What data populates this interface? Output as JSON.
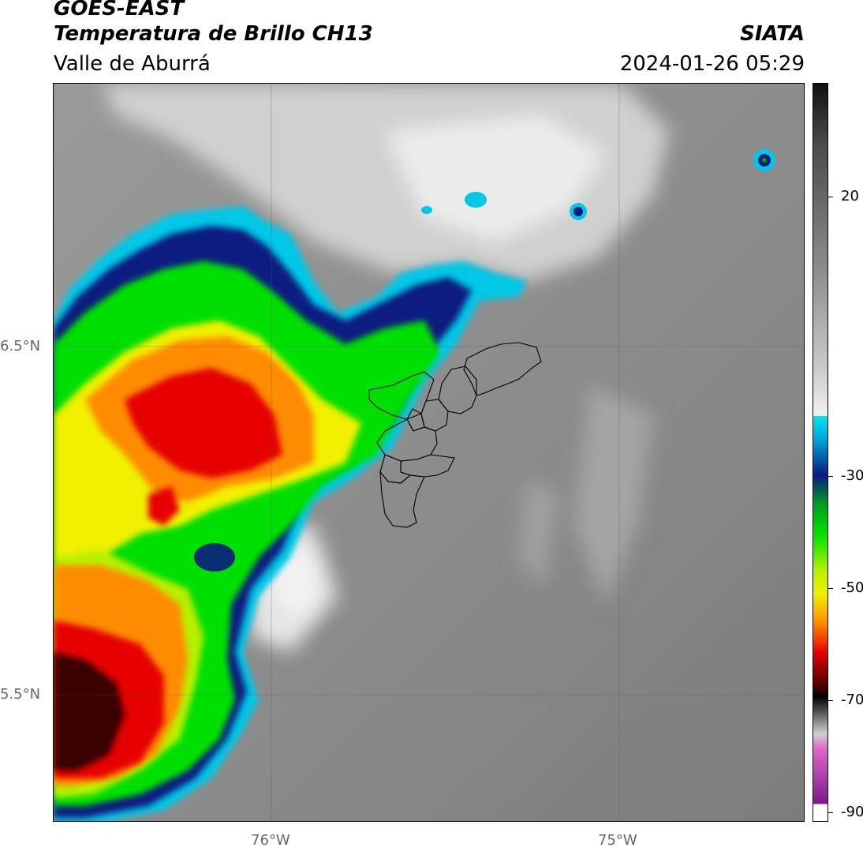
{
  "header": {
    "satellite": "GOES-EAST",
    "product": "Temperatura de Brillo CH13",
    "region": "Valle de Aburrá",
    "brand": "SIATA",
    "timestamp": "2024-01-26 05:29"
  },
  "map": {
    "lat_labels": [
      "6.5°N",
      "5.5°N"
    ],
    "lon_labels": [
      "76°W",
      "75°W"
    ]
  },
  "colorbar": {
    "ticks": [
      "20",
      "-30",
      "-50",
      "-70",
      "-90"
    ],
    "colors": {
      "warm": "#8c8c8c",
      "cold_white": "#f2f2f2",
      "cyan": "#00c8e6",
      "navy": "#0a1a80",
      "green": "#00e000",
      "yellow": "#f0f000",
      "orange": "#ff8c00",
      "red": "#e60000",
      "darkred": "#3a0000",
      "pink": "#e066c8",
      "purple": "#7a1a8c"
    }
  }
}
